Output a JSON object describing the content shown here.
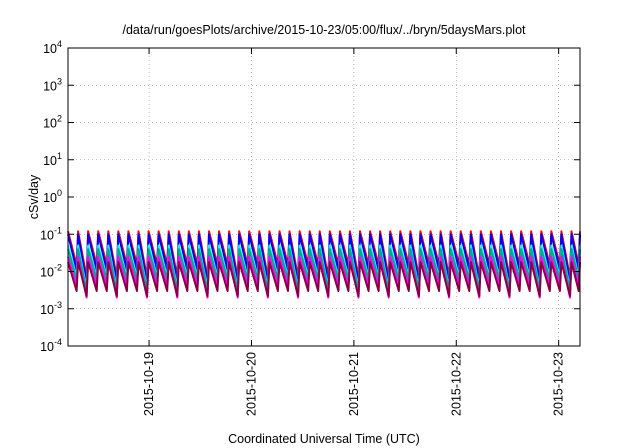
{
  "chart_data": {
    "type": "line",
    "title": "/data/run/goesPlots/archive/2015-10-23/05:00/flux/../bryn/5daysMars.plot",
    "xlabel": "Coordinated Universal Time (UTC)",
    "ylabel": "cSv/day",
    "yscale": "log",
    "ylim": [
      0.0001,
      10000
    ],
    "xlim": [
      "2015-10-18T05:00",
      "2015-10-23T05:00"
    ],
    "grid": "dotted",
    "legend": "none",
    "y_ticks": [
      {
        "base": "10",
        "exp": "-4"
      },
      {
        "base": "10",
        "exp": "-3"
      },
      {
        "base": "10",
        "exp": "-2"
      },
      {
        "base": "10",
        "exp": "-1"
      },
      {
        "base": "10",
        "exp": "0"
      },
      {
        "base": "10",
        "exp": "1"
      },
      {
        "base": "10",
        "exp": "2"
      },
      {
        "base": "10",
        "exp": "3"
      },
      {
        "base": "10",
        "exp": "4"
      }
    ],
    "x_ticks": [
      "2015-10-19",
      "2015-10-20",
      "2015-10-21",
      "2015-10-22",
      "2015-10-23"
    ],
    "sawtooth_period_hours": 2.36,
    "series": [
      {
        "color": "#ff0000",
        "peak": 0.12,
        "trough": 0.015,
        "dip": 0.007
      },
      {
        "color": "#0000ff",
        "peak": 0.1,
        "trough": 0.011,
        "dip": 0.005
      },
      {
        "color": "#00ffff",
        "peak": 0.05,
        "trough": 0.007,
        "dip": 0.0035
      },
      {
        "color": "#00aa88",
        "peak": 0.04,
        "trough": 0.006,
        "dip": 0.003
      },
      {
        "color": "#ff00ff",
        "peak": 0.025,
        "trough": 0.004,
        "dip": 0.002
      },
      {
        "color": "#880044",
        "peak": 0.018,
        "trough": 0.003,
        "dip": 0.0022
      }
    ]
  }
}
